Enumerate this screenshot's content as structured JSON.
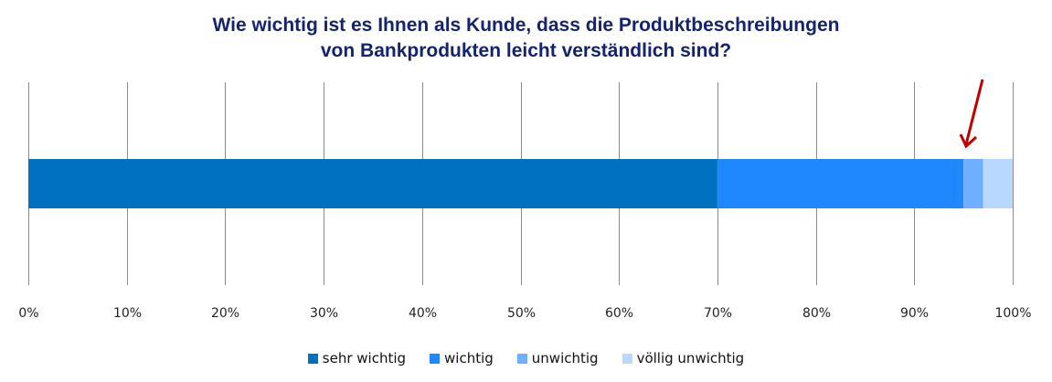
{
  "chart_data": {
    "type": "bar",
    "orientation": "horizontal-stacked-100",
    "title_line1": "Wie wichtig ist es Ihnen als Kunde, dass die Produktbeschreibungen",
    "title_line2": "von Bankprodukten leicht verständlich sind?",
    "xlim": [
      0,
      100
    ],
    "ticks": [
      "0%",
      "10%",
      "20%",
      "30%",
      "40%",
      "50%",
      "60%",
      "70%",
      "80%",
      "90%",
      "100%"
    ],
    "grid": true,
    "legend_position": "bottom",
    "series": [
      {
        "name": "sehr wichtig",
        "value": 70,
        "color": "#0070c0"
      },
      {
        "name": "wichtig",
        "value": 25,
        "color": "#2088ff"
      },
      {
        "name": "unwichtig",
        "value": 2,
        "color": "#6eb0ff"
      },
      {
        "name": "völlig unwichtig",
        "value": 3,
        "color": "#b8d8ff"
      }
    ],
    "annotation": {
      "type": "arrow",
      "points_to": "unwichtig",
      "color": "#c00000"
    }
  }
}
